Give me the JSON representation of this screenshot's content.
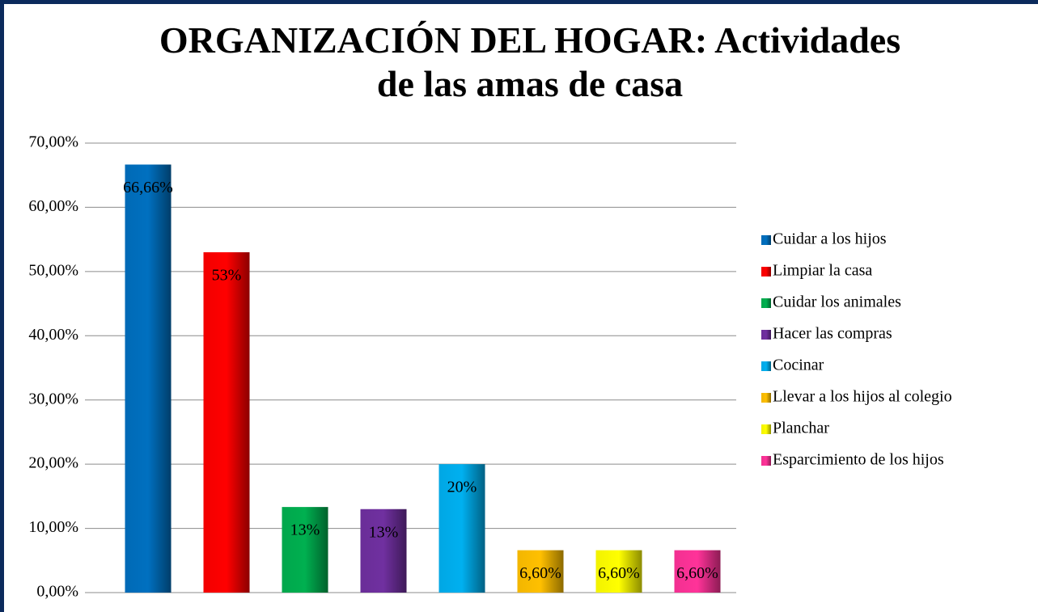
{
  "chart_data": {
    "type": "bar",
    "title": "ORGANIZACIÓN DEL HOGAR: Actividades de las amas de casa",
    "categories": [
      null
    ],
    "series": [
      {
        "name": "Cuidar a los hijos",
        "color": "#0070c0",
        "values": [
          66.66
        ],
        "value_labels": [
          "66,66%"
        ]
      },
      {
        "name": "Limpiar la casa",
        "color": "#ff0000",
        "values": [
          53
        ],
        "value_labels": [
          "53%"
        ]
      },
      {
        "name": "Cuidar los animales",
        "color": "#00b050",
        "values": [
          13.33
        ],
        "value_labels": [
          "13%"
        ]
      },
      {
        "name": "Hacer las compras",
        "color": "#7030a0",
        "values": [
          13
        ],
        "value_labels": [
          "13%"
        ]
      },
      {
        "name": "Cocinar",
        "color": "#00b0f0",
        "values": [
          20
        ],
        "value_labels": [
          "20%"
        ]
      },
      {
        "name": "Llevar a los hijos al colegio",
        "color": "#ffc000",
        "values": [
          6.6
        ],
        "value_labels": [
          "6,60%"
        ]
      },
      {
        "name": "Planchar",
        "color": "#ffff00",
        "values": [
          6.6
        ],
        "value_labels": [
          "6,60%"
        ]
      },
      {
        "name": "Esparcimiento de los hijos",
        "color": "#ff3399",
        "values": [
          6.6
        ],
        "value_labels": [
          "6,60%"
        ]
      }
    ],
    "ylim": [
      0,
      70
    ],
    "yticks": [
      {
        "value": 0,
        "label": "0,00%"
      },
      {
        "value": 10,
        "label": "10,00%"
      },
      {
        "value": 20,
        "label": "20,00%"
      },
      {
        "value": 30,
        "label": "30,00%"
      },
      {
        "value": 40,
        "label": "40,00%"
      },
      {
        "value": 50,
        "label": "50,00%"
      },
      {
        "value": 60,
        "label": "60,00%"
      },
      {
        "value": 70,
        "label": "70,00%"
      }
    ],
    "grid": true,
    "legend": "right"
  }
}
